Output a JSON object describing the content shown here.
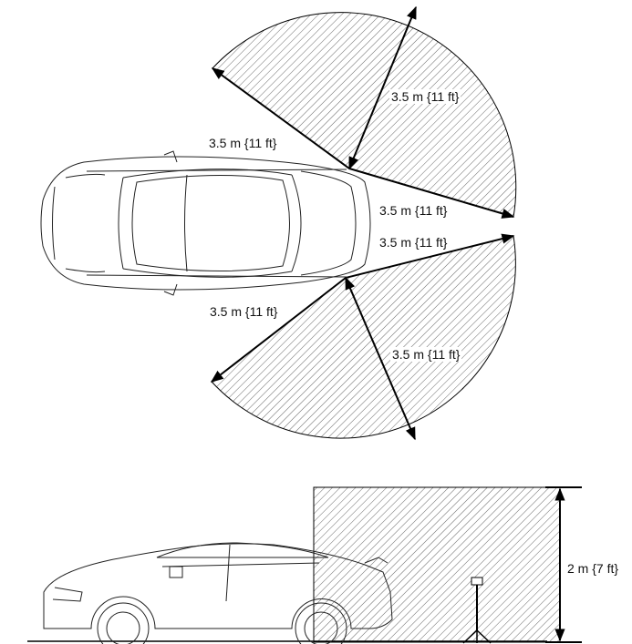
{
  "top_view": {
    "labels": {
      "upper_radius": "3.5 m {11 ft}",
      "upper_side": "3.5 m {11 ft}",
      "upper_rear": "3.5 m {11 ft}",
      "lower_rear": "3.5 m {11 ft}",
      "lower_side": "3.5 m {11 ft}",
      "lower_radius": "3.5 m {11 ft}"
    }
  },
  "side_view": {
    "height_label": "2 m {7 ft}"
  },
  "colors": {
    "line": "#000000",
    "hatch": "#555555"
  },
  "icons": [
    "car-top-view-icon",
    "car-side-view-icon",
    "tripod-antenna-icon"
  ]
}
